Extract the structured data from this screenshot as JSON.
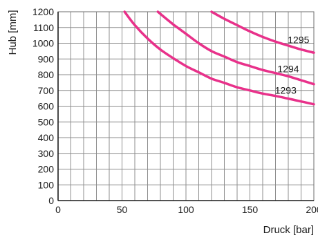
{
  "chart_data": {
    "type": "line",
    "title": "",
    "xlabel": "Druck [bar]",
    "ylabel": "Hub [mm]",
    "xlim": [
      0,
      200
    ],
    "ylim": [
      0,
      1200
    ],
    "x_ticks": [
      0,
      50,
      100,
      150,
      200
    ],
    "x_tick_labels": [
      "0",
      "50",
      "100",
      "150",
      "200"
    ],
    "y_ticks": [
      0,
      100,
      200,
      300,
      400,
      500,
      600,
      700,
      800,
      900,
      1000,
      1100,
      1200
    ],
    "y_tick_labels": [
      "0",
      "100",
      "200",
      "300",
      "400",
      "500",
      "600",
      "700",
      "800",
      "900",
      "1000",
      "1100",
      "1200"
    ],
    "x_minor_step": 10,
    "y_minor_step": 100,
    "grid": true,
    "line_color": "#e8318a",
    "series": [
      {
        "name": "1293",
        "x": [
          52,
          60,
          70,
          80,
          90,
          100,
          110,
          120,
          130,
          140,
          150,
          160,
          170,
          180,
          190,
          200
        ],
        "y": [
          1200,
          1115,
          1030,
          960,
          905,
          855,
          815,
          775,
          748,
          720,
          700,
          680,
          665,
          648,
          630,
          612
        ]
      },
      {
        "name": "1294",
        "x": [
          78,
          90,
          100,
          110,
          120,
          130,
          140,
          150,
          160,
          170,
          180,
          190,
          200
        ],
        "y": [
          1200,
          1120,
          1060,
          1000,
          950,
          915,
          880,
          855,
          830,
          810,
          790,
          765,
          740
        ]
      },
      {
        "name": "1295",
        "x": [
          120,
          130,
          140,
          150,
          160,
          170,
          180,
          190,
          200
        ],
        "y": [
          1200,
          1155,
          1115,
          1075,
          1040,
          1010,
          985,
          960,
          940
        ]
      }
    ],
    "series_labels": [
      {
        "text": "1295",
        "x": 188,
        "y": 1000
      },
      {
        "text": "1294",
        "x": 180,
        "y": 815
      },
      {
        "text": "1293",
        "x": 178,
        "y": 680
      }
    ]
  }
}
